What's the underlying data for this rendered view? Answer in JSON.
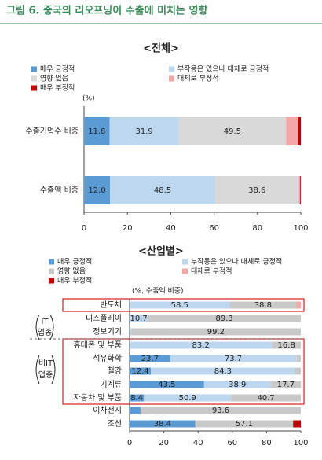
{
  "title": "그림 6. 중국의 리오프닝이 수출에 미치는 영향",
  "chart_data": [
    {
      "type": "stacked_bar_horizontal",
      "title": "<전체>",
      "unit_label": "(%)",
      "categories": [
        "수출기업수 비중",
        "수출액 비중"
      ],
      "series": [
        {
          "name": "매우 긍정적",
          "color": "#5b9bd5",
          "values": [
            11.8,
            12.0
          ],
          "value_labels": [
            "11.8",
            "12.0"
          ]
        },
        {
          "name": "부작용은 있으나 대체로 긍정적",
          "color": "#bdd7ee",
          "values": [
            31.9,
            48.5
          ],
          "value_labels": [
            "31.9",
            "48.5"
          ]
        },
        {
          "name": "영향 없음",
          "color": "#d9d9d9",
          "values": [
            49.5,
            38.6
          ],
          "value_labels": [
            "49.5",
            "38.6"
          ]
        },
        {
          "name": "대체로 부정적",
          "color": "#f4a7a7",
          "values": [
            5.5,
            0.6
          ],
          "value_labels": [
            null,
            null
          ]
        },
        {
          "name": "매우 부정적",
          "color": "#c00000",
          "values": [
            1.3,
            0.3
          ],
          "value_labels": [
            null,
            null
          ]
        }
      ],
      "xlim": [
        0,
        100
      ],
      "xticks": [
        0,
        20,
        40,
        60,
        80,
        100
      ]
    },
    {
      "type": "stacked_bar_horizontal",
      "title": "<산업별>",
      "unit_label": "(%, 수출액 비중)",
      "categories": [
        "반도체",
        "디스플레이",
        "정보기기",
        "휴대폰 및 부품",
        "석유화학",
        "철강",
        "기계류",
        "자동차 및 부품",
        "이차전지",
        "조선"
      ],
      "series": [
        {
          "name": "매우 긍정적",
          "color": "#5b9bd5",
          "values": [
            0,
            0,
            0,
            0,
            23.7,
            12.4,
            43.5,
            8.4,
            6.4,
            38.4
          ],
          "value_labels": [
            null,
            null,
            null,
            null,
            "23.7",
            "12.4",
            "43.5",
            "8.4",
            null,
            "38.4"
          ]
        },
        {
          "name": "부작용은 있으나 대체로 긍정적",
          "color": "#bdd7ee",
          "values": [
            58.5,
            10.7,
            0.8,
            83.2,
            73.7,
            84.3,
            38.9,
            50.9,
            0,
            0
          ],
          "value_labels": [
            "58.5",
            "10.7",
            null,
            "83.2",
            "73.7",
            "84.3",
            "38.9",
            "50.9",
            null,
            null
          ]
        },
        {
          "name": "영향 없음",
          "color": "#c9c9c9",
          "values": [
            38.8,
            89.3,
            99.2,
            16.8,
            2.6,
            3.3,
            17.7,
            40.7,
            93.6,
            57.1
          ],
          "value_labels": [
            "38.8",
            "89.3",
            "99.2",
            "16.8",
            null,
            null,
            "17.7",
            "40.7",
            "93.6",
            "57.1"
          ]
        },
        {
          "name": "대체로 부정적",
          "color": "#f4a7a7",
          "values": [
            2.7,
            0,
            0,
            0,
            0,
            0,
            0,
            0,
            0,
            0
          ],
          "value_labels": [
            null,
            null,
            null,
            null,
            null,
            null,
            null,
            null,
            null,
            null
          ]
        },
        {
          "name": "매우 부정적",
          "color": "#c00000",
          "values": [
            0,
            0,
            0,
            0,
            0,
            0,
            0,
            0,
            0,
            4.5
          ],
          "value_labels": [
            null,
            null,
            null,
            null,
            null,
            null,
            null,
            null,
            null,
            null
          ]
        }
      ],
      "groups": [
        {
          "label": [
            "IT",
            "업종"
          ]
        },
        {
          "label": [
            "비IT",
            "업종"
          ]
        }
      ],
      "xlim": [
        0,
        100
      ],
      "xticks": [
        0,
        20,
        40,
        60,
        80,
        100
      ]
    }
  ]
}
